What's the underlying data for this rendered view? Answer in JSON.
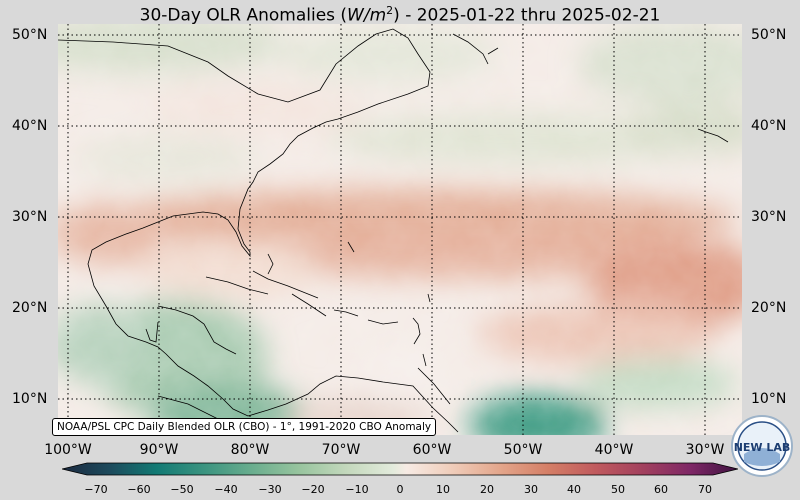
{
  "title": {
    "prefix": "30-Day OLR Anomalies (",
    "unit_base": "W/m",
    "unit_exp": "2",
    "suffix": ") - 2025-01-22 thru 2025-02-21"
  },
  "lat_labels": [
    "50°N",
    "40°N",
    "30°N",
    "20°N",
    "10°N"
  ],
  "lon_labels": [
    "100°W",
    "90°W",
    "80°W",
    "70°W",
    "60°W",
    "50°W",
    "40°W",
    "30°W"
  ],
  "credit": "NOAA/PSL CPC Daily Blended OLR (CBO) - 1°, 1991-2020 CBO Anomaly",
  "colorbar": {
    "ticks": [
      "−70",
      "−60",
      "−50",
      "−40",
      "−30",
      "−20",
      "−10",
      "0",
      "10",
      "20",
      "30",
      "40",
      "50",
      "60",
      "70"
    ],
    "negative_colors": [
      "#1b2a40",
      "#1d4a5c",
      "#127a74",
      "#3b9480",
      "#69ad8e",
      "#97c49e",
      "#c3d8bc",
      "#e3ebdc"
    ],
    "positive_colors": [
      "#f7ebe4",
      "#efcbb8",
      "#e3a58a",
      "#d47e66",
      "#c05a5e",
      "#a2405e",
      "#7e2766",
      "#3e1340"
    ]
  },
  "logo": {
    "text": "NEW LAB",
    "icon": "noaa-psl-logo-icon"
  },
  "map_region": {
    "lat_range": [
      "5°N",
      "52°N"
    ],
    "lon_range": [
      "101°W",
      "26°W"
    ]
  }
}
